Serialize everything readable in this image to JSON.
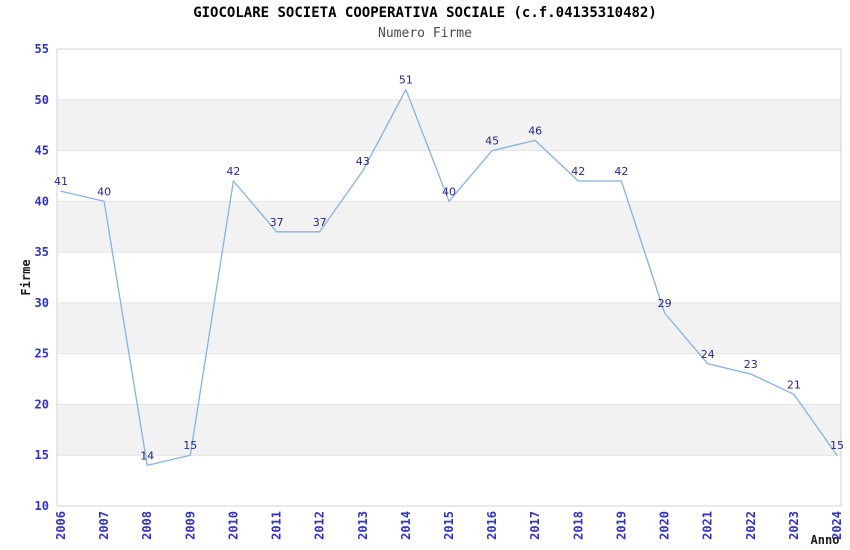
{
  "chart_data": {
    "type": "line",
    "title": "GIOCOLARE SOCIETA COOPERATIVA SOCIALE (c.f.04135310482)",
    "subtitle": "Numero Firme",
    "xlabel": "Anno",
    "ylabel": "Firme",
    "categories": [
      "2006",
      "2007",
      "2008",
      "2009",
      "2010",
      "2011",
      "2012",
      "2013",
      "2014",
      "2015",
      "2016",
      "2017",
      "2018",
      "2019",
      "2020",
      "2021",
      "2022",
      "2023",
      "2024"
    ],
    "values": [
      41,
      40,
      14,
      15,
      42,
      37,
      37,
      43,
      51,
      40,
      45,
      46,
      42,
      42,
      29,
      24,
      23,
      21,
      15
    ],
    "ylim": [
      10,
      55
    ],
    "ytick_step": 5,
    "grid": true,
    "legend": false,
    "point_labels": true,
    "colors": {
      "line": "#85b3e2",
      "tick_label": "#3030cf",
      "point_label": "#26268a",
      "band": "#f2f2f2",
      "gridline": "#e4e4e4",
      "border": "#d3d3d3",
      "title": "#000000",
      "subtitle": "#4a4a4a",
      "axis_title": "#1a1a1a",
      "background": "#ffffff"
    }
  }
}
